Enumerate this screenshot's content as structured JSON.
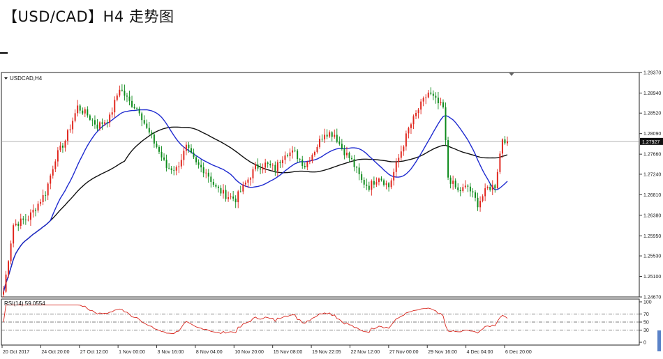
{
  "header": {
    "title": "【USD/CAD】H4 走势图"
  },
  "chart_data": {
    "type": "candlestick",
    "symbol_label": "USDCAD,H4",
    "price_ticks": [
      "1.29370",
      "1.28940",
      "1.28520",
      "1.28090",
      "1.27660",
      "1.27240",
      "1.26810",
      "1.26380",
      "1.25950",
      "1.25530",
      "1.25100",
      "1.24670"
    ],
    "current_price_label": "1.27927",
    "current_price": 1.27927,
    "ylim": [
      1.2467,
      1.2937
    ],
    "x_ticks": [
      "20 Oct 2017",
      "24 Oct 20:00",
      "27 Oct 12:00",
      "1 Nov 00:00",
      "3 Nov 16:00",
      "8 Nov 04:00",
      "10 Nov 20:00",
      "15 Nov 08:00",
      "19 Nov 22:05",
      "22 Nov 12:00",
      "27 Nov 00:00",
      "29 Nov 16:00",
      "4 Dec 04:00",
      "6 Dec 20:00"
    ],
    "anchors": [
      [
        0,
        1.2478
      ],
      [
        4,
        1.2618
      ],
      [
        10,
        1.2632
      ],
      [
        17,
        1.2685
      ],
      [
        21,
        1.2758
      ],
      [
        25,
        1.2795
      ],
      [
        30,
        1.2865
      ],
      [
        34,
        1.2848
      ],
      [
        38,
        1.2825
      ],
      [
        43,
        1.2842
      ],
      [
        47,
        1.2905
      ],
      [
        51,
        1.2875
      ],
      [
        55,
        1.2858
      ],
      [
        58,
        1.2818
      ],
      [
        62,
        1.2782
      ],
      [
        66,
        1.2738
      ],
      [
        70,
        1.2735
      ],
      [
        74,
        1.278
      ],
      [
        78,
        1.2745
      ],
      [
        82,
        1.273
      ],
      [
        86,
        1.2695
      ],
      [
        90,
        1.268
      ],
      [
        94,
        1.2672
      ],
      [
        98,
        1.2705
      ],
      [
        102,
        1.2738
      ],
      [
        106,
        1.2745
      ],
      [
        110,
        1.2735
      ],
      [
        114,
        1.277
      ],
      [
        118,
        1.2768
      ],
      [
        122,
        1.2742
      ],
      [
        126,
        1.2775
      ],
      [
        130,
        1.2812
      ],
      [
        134,
        1.2808
      ],
      [
        137,
        1.2778
      ],
      [
        141,
        1.2752
      ],
      [
        145,
        1.271
      ],
      [
        148,
        1.2698
      ],
      [
        152,
        1.272
      ],
      [
        156,
        1.2698
      ],
      [
        160,
        1.2758
      ],
      [
        164,
        1.2818
      ],
      [
        168,
        1.286
      ],
      [
        172,
        1.2895
      ],
      [
        176,
        1.2872
      ],
      [
        178,
        1.2862
      ],
      [
        180,
        1.2718
      ],
      [
        184,
        1.2688
      ],
      [
        188,
        1.2698
      ],
      [
        192,
        1.2662
      ],
      [
        196,
        1.2695
      ],
      [
        199,
        1.27
      ],
      [
        202,
        1.28
      ],
      [
        204,
        1.2793
      ]
    ],
    "ma_periods": [
      20,
      50
    ],
    "rsi": {
      "label": "RSI(14) 59.0554",
      "value": 59.0554,
      "ticks": [
        "100",
        "70",
        "50",
        "30",
        "0"
      ],
      "levels": [
        70,
        50,
        30
      ],
      "ylim": [
        0,
        100
      ]
    },
    "colors": {
      "bull": "#e0241b",
      "bear": "#0c8a1a",
      "ma_fast": "#1f2bd0",
      "ma_slow": "#111111",
      "rsi": "#d8261d",
      "grid": "#555555"
    }
  }
}
